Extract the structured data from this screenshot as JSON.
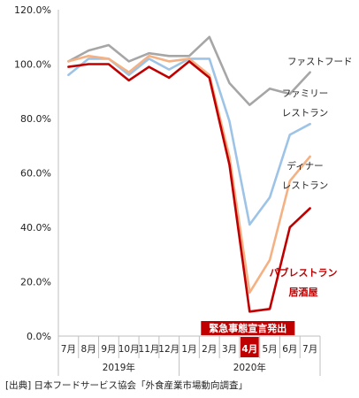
{
  "chart_data": {
    "type": "line",
    "x": [
      "7月",
      "8月",
      "9月",
      "10月",
      "11月",
      "12月",
      "1月",
      "2月",
      "3月",
      "4月",
      "5月",
      "6月",
      "7月"
    ],
    "year_groups": [
      {
        "label": "2019年",
        "from": 0,
        "to": 5
      },
      {
        "label": "2020年",
        "from": 6,
        "to": 12
      }
    ],
    "highlight_index": 9,
    "ylim": [
      0,
      120
    ],
    "yticks": [
      0,
      20,
      40,
      60,
      80,
      100,
      120
    ],
    "ytick_labels": [
      "0.0%",
      "20.0%",
      "40.0%",
      "60.0%",
      "80.0%",
      "100.0%",
      "120.0%"
    ],
    "grid": false,
    "series": [
      {
        "name": "ファストフード",
        "label_lines": [
          "ファストフード"
        ],
        "color": "#a6a6a6",
        "values": [
          101,
          105,
          107,
          101,
          104,
          103,
          103,
          110,
          93,
          85,
          91,
          89,
          97
        ]
      },
      {
        "name": "ファミリーレストラン",
        "label_lines": [
          "ファミリー",
          "レストラン"
        ],
        "color": "#9dc3e6",
        "values": [
          96,
          102,
          102,
          96,
          102,
          98,
          102,
          102,
          79,
          41,
          51,
          74,
          78
        ]
      },
      {
        "name": "ディナーレストラン",
        "label_lines": [
          "ディナー",
          "レストラン"
        ],
        "color": "#f4b183",
        "values": [
          101,
          103,
          102,
          97,
          103,
          101,
          102,
          96,
          66,
          16,
          28,
          57,
          66
        ]
      },
      {
        "name": "パブレストラン居酒屋",
        "label_lines": [
          "パブレストラン",
          "居酒屋"
        ],
        "color": "#c00000",
        "values": [
          99,
          100,
          100,
          94,
          99,
          95,
          101,
          95,
          63,
          9,
          10,
          40,
          47
        ]
      }
    ],
    "annotation": "緊急事態宣言発出"
  },
  "source": "[出典] 日本フードサービス協会「外食産業市場動向調査」"
}
